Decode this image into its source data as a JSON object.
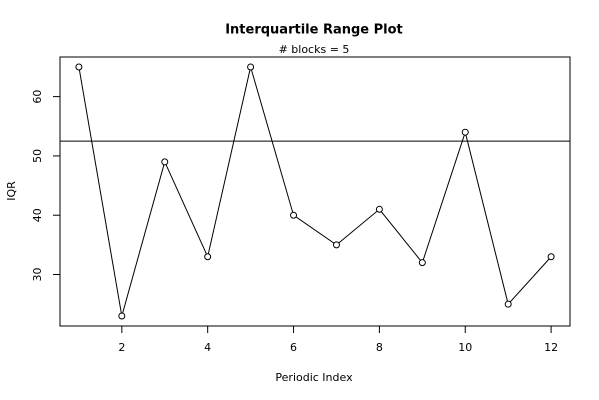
{
  "chart_data": {
    "type": "line",
    "title": "Interquartile Range Plot",
    "subtitle": "# blocks =  5",
    "x_label": "Periodic Index",
    "y_label": "IQR",
    "x": [
      1,
      2,
      3,
      4,
      5,
      6,
      7,
      8,
      9,
      10,
      11,
      12
    ],
    "values": [
      65,
      23,
      49,
      33,
      65,
      40,
      35,
      41,
      32,
      54,
      25,
      33
    ],
    "color": "#000000",
    "reference_line": 52.5,
    "xlim": [
      0.56,
      12.44
    ],
    "xticks": [
      2,
      4,
      6,
      8,
      10,
      12
    ],
    "ylim": [
      21.32,
      66.68
    ],
    "yticks": [
      30,
      40,
      50,
      60
    ]
  }
}
